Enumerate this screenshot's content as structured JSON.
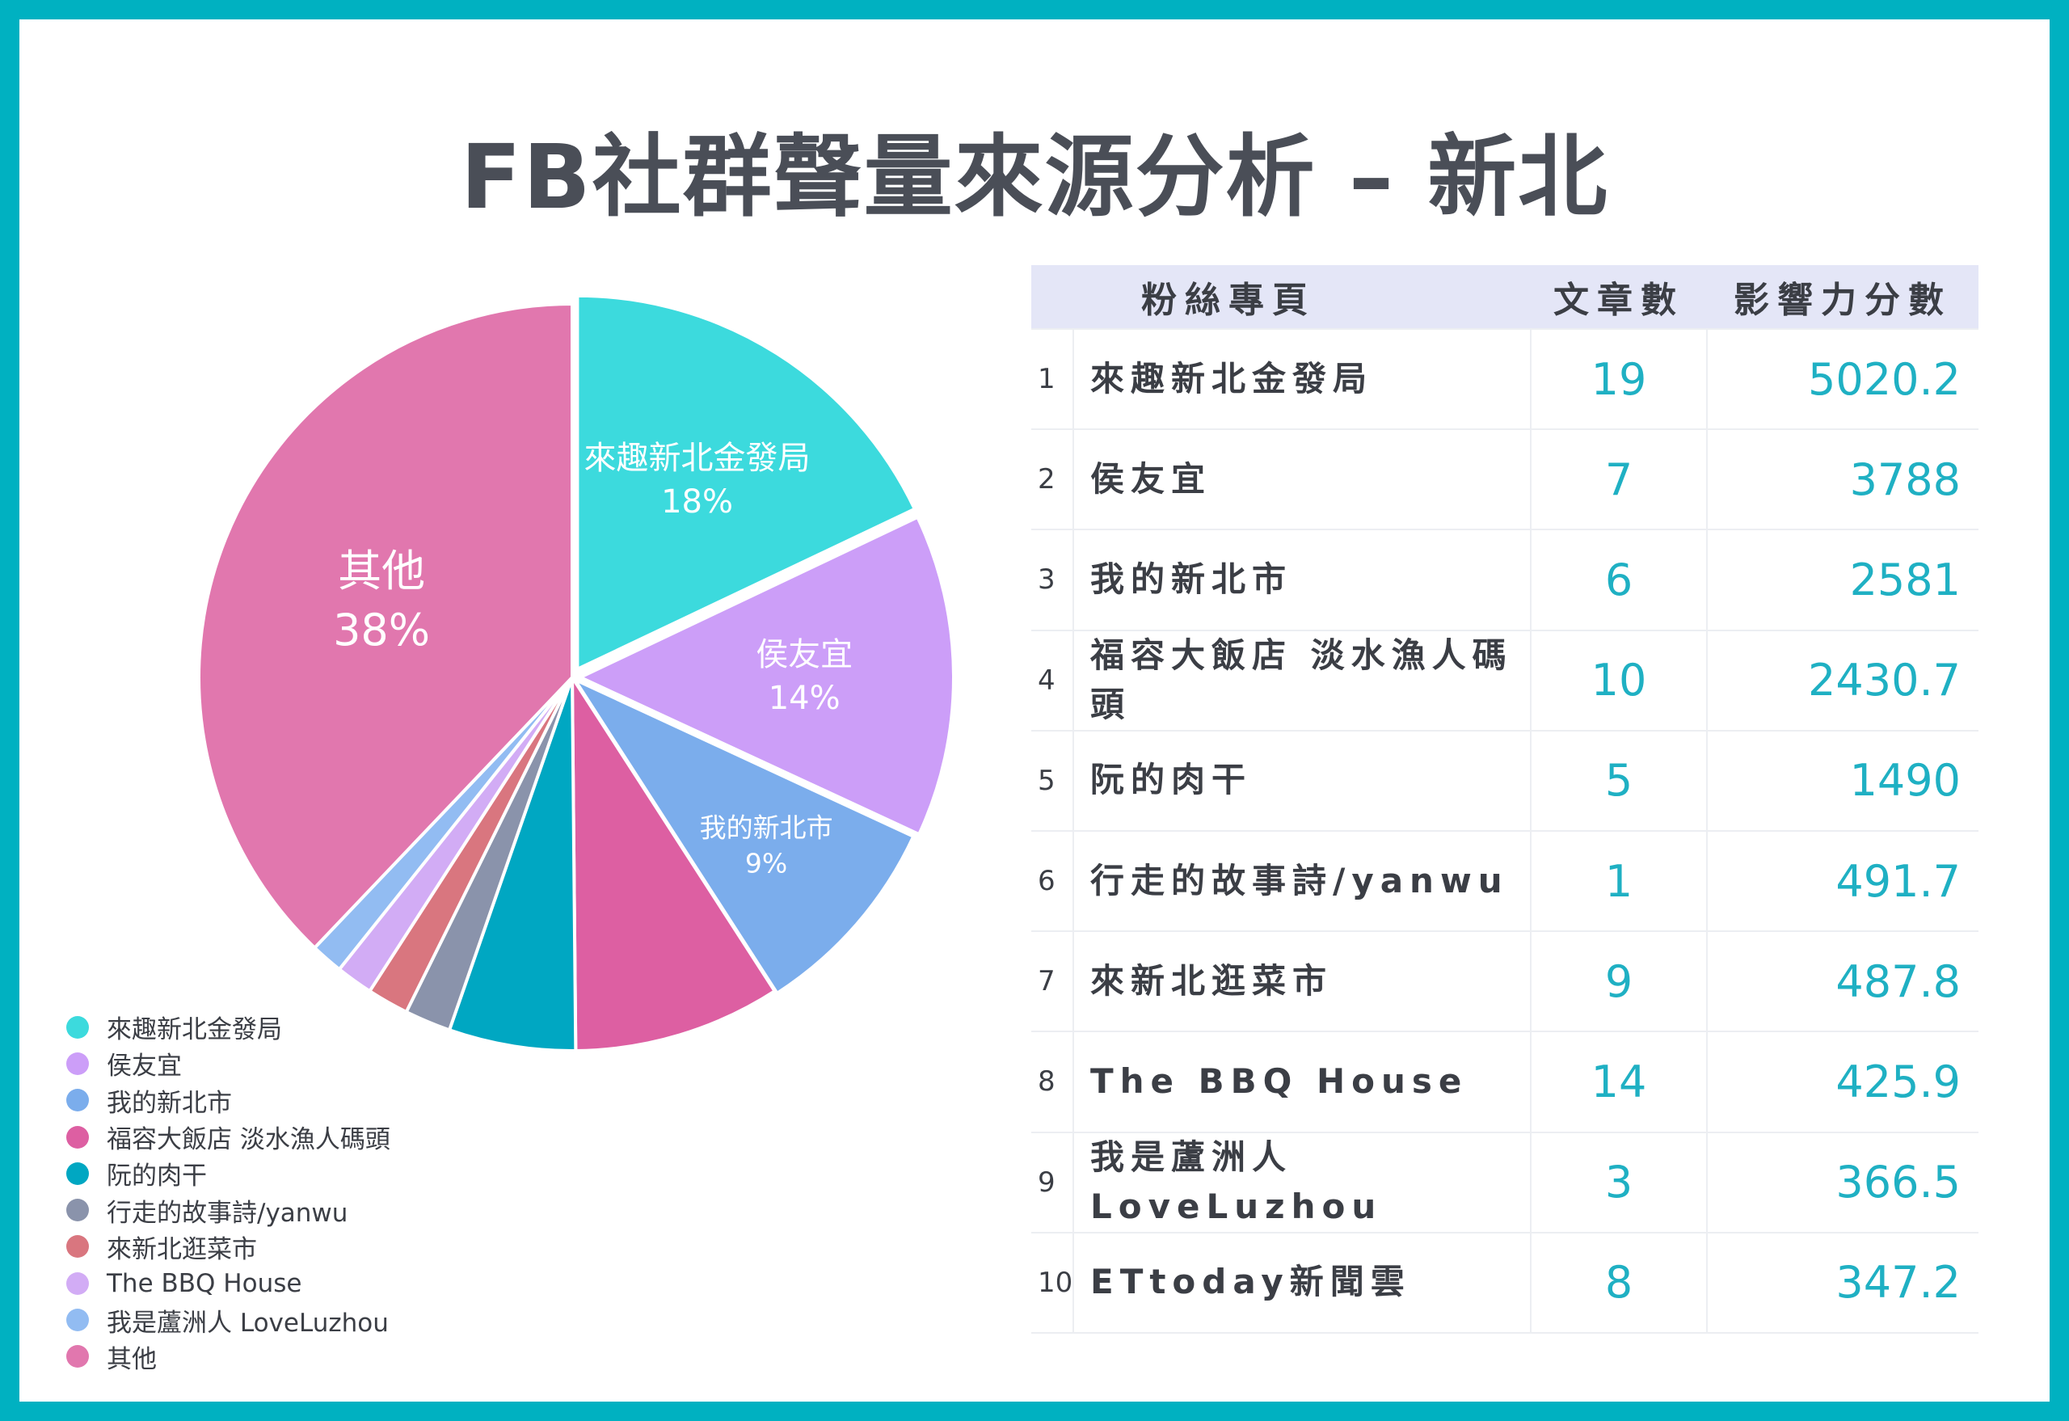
{
  "title": "FB社群聲量來源分析 – 新北",
  "chart_data": {
    "type": "pie",
    "categories": [
      "來趣新北金發局",
      "侯友宜",
      "我的新北市",
      "福容大飯店 淡水漁人碼頭",
      "阮的肉干",
      "行走的故事詩/yanwu",
      "來新北逛菜市",
      "The BBQ House",
      "我是蘆洲人 LoveLuzhou",
      "其他"
    ],
    "values": [
      18,
      14,
      9,
      9,
      5.5,
      2,
      1.8,
      1.6,
      1.4,
      38
    ],
    "slice_labels": [
      {
        "name": "來趣新北金發局",
        "pct": "18%"
      },
      {
        "name": "侯友宜",
        "pct": "14%"
      },
      {
        "name": "我的新北市",
        "pct": "9%"
      },
      {
        "name": "",
        "pct": ""
      },
      {
        "name": "",
        "pct": ""
      },
      {
        "name": "",
        "pct": ""
      },
      {
        "name": "",
        "pct": ""
      },
      {
        "name": "",
        "pct": ""
      },
      {
        "name": "",
        "pct": ""
      },
      {
        "name": "其他",
        "pct": "38%"
      }
    ],
    "colors": [
      "#3cdadd",
      "#cc9ef8",
      "#7badec",
      "#dd5fa2",
      "#00a7c2",
      "#8a93ab",
      "#d9767f",
      "#d2acf5",
      "#92bcf2",
      "#e177ae"
    ],
    "legend_position": "bottom-left"
  },
  "table": {
    "headers": [
      "粉絲專頁",
      "文章數",
      "影響力分數"
    ],
    "rows": [
      {
        "rank": "1",
        "page": "來趣新北金發局",
        "count": "19",
        "score": "5020.2"
      },
      {
        "rank": "2",
        "page": "侯友宜",
        "count": "7",
        "score": "3788"
      },
      {
        "rank": "3",
        "page": "我的新北市",
        "count": "6",
        "score": "2581"
      },
      {
        "rank": "4",
        "page": "福容大飯店 淡水漁人碼頭",
        "count": "10",
        "score": "2430.7"
      },
      {
        "rank": "5",
        "page": "阮的肉干",
        "count": "5",
        "score": "1490"
      },
      {
        "rank": "6",
        "page": "行走的故事詩/yanwu",
        "count": "1",
        "score": "491.7"
      },
      {
        "rank": "7",
        "page": "來新北逛菜市",
        "count": "9",
        "score": "487.8"
      },
      {
        "rank": "8",
        "page": "The BBQ House",
        "count": "14",
        "score": "425.9"
      },
      {
        "rank": "9",
        "page": "我是蘆洲人 LoveLuzhou",
        "count": "3",
        "score": "366.5"
      },
      {
        "rank": "10",
        "page": "ETtoday新聞雲",
        "count": "8",
        "score": "347.2"
      }
    ]
  }
}
